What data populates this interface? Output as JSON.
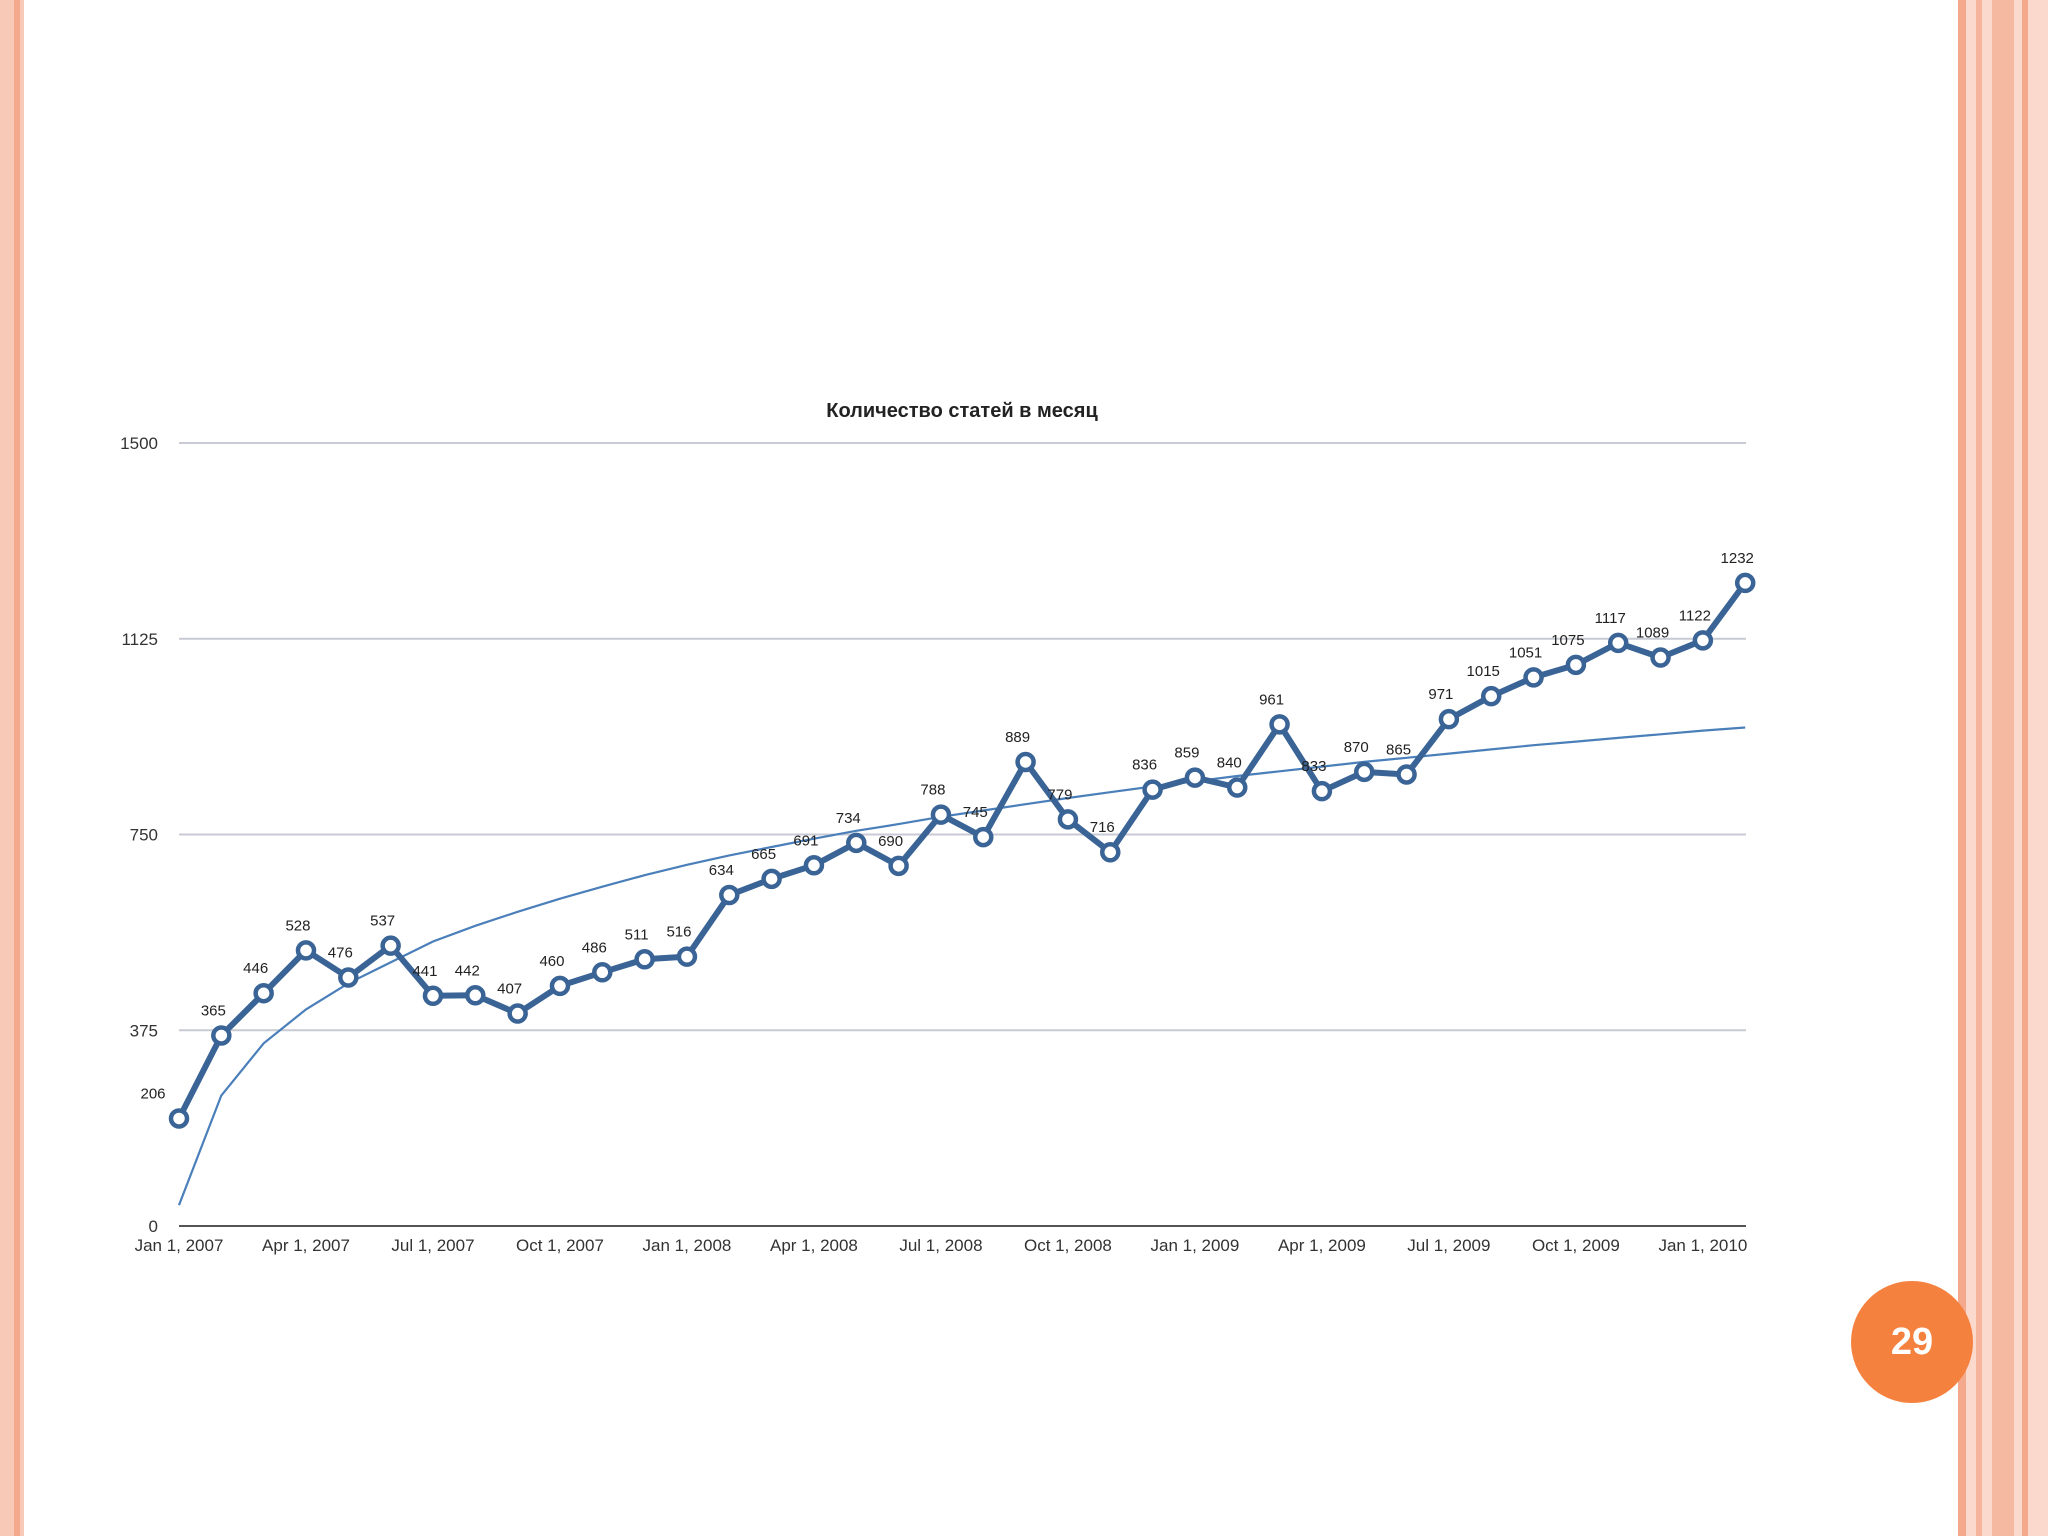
{
  "page": {
    "number": "29",
    "accent": "#f5813f"
  },
  "chart_data": {
    "type": "line",
    "title": "Количество статей в месяц",
    "xlabel": "",
    "ylabel": "",
    "ylim": [
      0,
      1500
    ],
    "yticks": [
      0,
      375,
      750,
      1125,
      1500
    ],
    "ytick_labels": [
      "0",
      "375",
      "750",
      "1125",
      "1500"
    ],
    "xticks": [
      "Jan 1, 2007",
      "Apr 1, 2007",
      "Jul 1, 2007",
      "Oct 1, 2007",
      "Jan 1, 2008",
      "Apr 1, 2008",
      "Jul 1, 2008",
      "Oct 1, 2008",
      "Jan 1, 2009",
      "Apr 1, 2009",
      "Jul 1, 2009",
      "Oct 1, 2009",
      "Jan 1, 2010"
    ],
    "grid": true,
    "series": [
      {
        "color": "#3a6496",
        "x": [
          "2007-01",
          "2007-02",
          "2007-03",
          "2007-04",
          "2007-05",
          "2007-06",
          "2007-07",
          "2007-08",
          "2007-09",
          "2007-10",
          "2007-11",
          "2007-12",
          "2008-01",
          "2008-02",
          "2008-03",
          "2008-04",
          "2008-05",
          "2008-06",
          "2008-07",
          "2008-08",
          "2008-09",
          "2008-10",
          "2008-11",
          "2008-12",
          "2009-01",
          "2009-02",
          "2009-03",
          "2009-04",
          "2009-05",
          "2009-06",
          "2009-07",
          "2009-08",
          "2009-09",
          "2009-10",
          "2009-11",
          "2009-12",
          "2010-01",
          "2010-02"
        ],
        "values": [
          206,
          365,
          446,
          528,
          476,
          537,
          441,
          442,
          407,
          460,
          486,
          511,
          516,
          634,
          665,
          691,
          734,
          690,
          788,
          745,
          889,
          779,
          716,
          836,
          859,
          840,
          961,
          833,
          870,
          865,
          971,
          1015,
          1051,
          1075,
          1117,
          1089,
          1122,
          1232
        ],
        "labels": [
          "206",
          "365",
          "446",
          "528",
          "476",
          "537",
          "441",
          "442",
          "407",
          "460",
          "486",
          "511",
          "516",
          "634",
          "665",
          "691",
          "734",
          "690",
          "788",
          "745",
          "889",
          "779",
          "716",
          "836",
          "859",
          "840",
          "961",
          "833",
          "870",
          "865",
          "971",
          "1015",
          "1051",
          "1075",
          "1117",
          "1089",
          "1122",
          "1232"
        ]
      },
      {
        "type": "trendline",
        "color": "#4a7fba",
        "values": [
          40,
          250,
          350,
          415,
          465,
          505,
          545,
          575,
          602,
          627,
          650,
          672,
          692,
          710,
          726,
          742,
          757,
          770,
          784,
          796,
          808,
          820,
          831,
          842,
          852,
          862,
          871,
          880,
          889,
          897,
          905,
          913,
          921,
          928,
          935,
          942,
          949,
          955
        ]
      }
    ]
  }
}
